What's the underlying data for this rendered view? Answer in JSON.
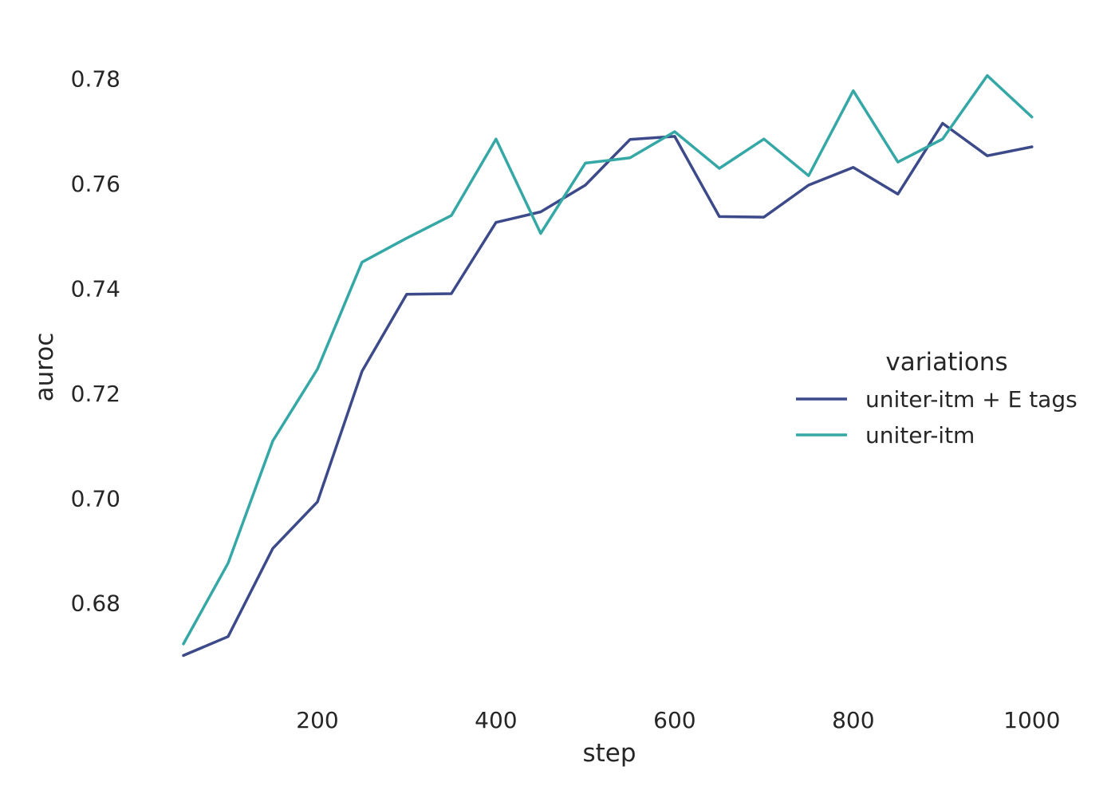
{
  "chart_data": {
    "type": "line",
    "title": "",
    "xlabel": "step",
    "ylabel": "auroc",
    "xlim": [
      0,
      1052
    ],
    "ylim": [
      0.6626,
      0.7874
    ],
    "x_ticks": [
      200,
      400,
      600,
      800,
      1000
    ],
    "x_tick_labels": [
      "200",
      "400",
      "600",
      "800",
      "1000"
    ],
    "y_ticks": [
      0.68,
      0.7,
      0.72,
      0.74,
      0.76,
      0.78
    ],
    "y_tick_labels": [
      "0.68",
      "0.70",
      "0.72",
      "0.74",
      "0.76",
      "0.78"
    ],
    "grid": false,
    "legend": {
      "title": "variations",
      "placement": "center-right"
    },
    "x": [
      50,
      100,
      150,
      200,
      250,
      300,
      350,
      400,
      450,
      500,
      550,
      600,
      650,
      700,
      750,
      800,
      850,
      900,
      950,
      1000
    ],
    "series": [
      {
        "name": "uniter-itm + E tags",
        "color": "#3d4a8a",
        "values": [
          0.67,
          0.6736,
          0.6904,
          0.6993,
          0.7242,
          0.7389,
          0.739,
          0.7526,
          0.7546,
          0.7597,
          0.7684,
          0.769,
          0.7537,
          0.7536,
          0.7597,
          0.7631,
          0.758,
          0.7715,
          0.7653,
          0.767
        ]
      },
      {
        "name": "uniter-itm",
        "color": "#35a8a6",
        "values": [
          0.6722,
          0.6876,
          0.7109,
          0.7246,
          0.745,
          0.7496,
          0.7539,
          0.7685,
          0.7505,
          0.7639,
          0.7649,
          0.7699,
          0.7629,
          0.7685,
          0.7615,
          0.7777,
          0.7641,
          0.7685,
          0.7806,
          0.7727
        ]
      }
    ]
  }
}
